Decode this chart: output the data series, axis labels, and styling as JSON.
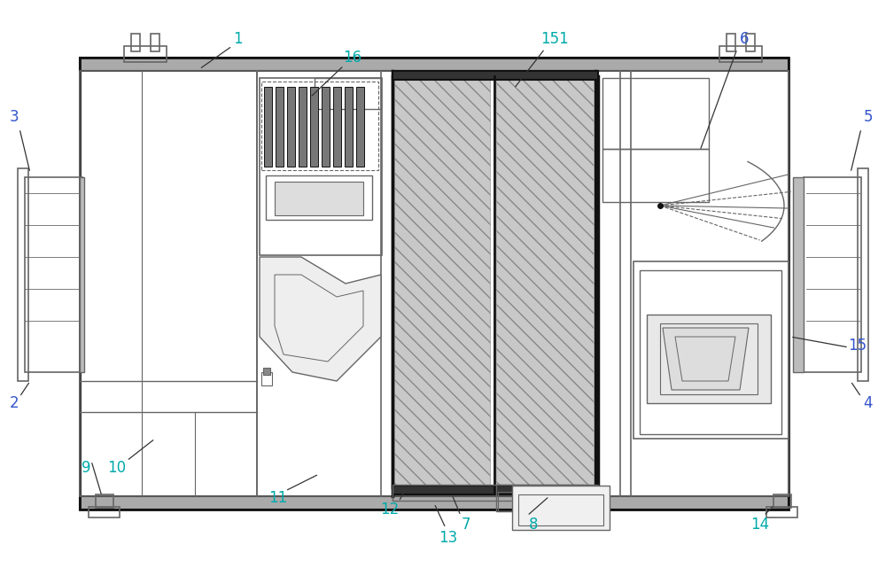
{
  "bg_color": "#ffffff",
  "line_color": "#666666",
  "dark_line": "#111111",
  "label_color_cyan": "#00aaaa",
  "label_color_blue": "#3355cc",
  "label_color_default": "#333333",
  "figsize": [
    10.0,
    6.41
  ],
  "dpi": 100
}
